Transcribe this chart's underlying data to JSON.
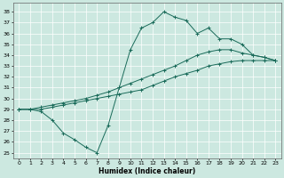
{
  "xlabel": "Humidex (Indice chaleur)",
  "bg_color": "#cce8e0",
  "line_color": "#1a6b5a",
  "grid_color": "#ffffff",
  "xlim": [
    -0.5,
    23.5
  ],
  "ylim": [
    24.5,
    38.8
  ],
  "xticks": [
    0,
    1,
    2,
    3,
    4,
    5,
    6,
    7,
    8,
    9,
    10,
    11,
    12,
    13,
    14,
    15,
    16,
    17,
    18,
    19,
    20,
    21,
    22,
    23
  ],
  "yticks": [
    25,
    26,
    27,
    28,
    29,
    30,
    31,
    32,
    33,
    34,
    35,
    36,
    37,
    38
  ],
  "curve1_x": [
    0,
    1,
    2,
    3,
    4,
    5,
    6,
    7,
    8,
    9,
    10,
    11,
    12,
    13,
    14,
    15,
    16,
    17,
    18,
    19,
    20,
    21,
    22,
    23
  ],
  "curve1_y": [
    29.0,
    29.0,
    29.0,
    29.2,
    29.4,
    29.6,
    29.8,
    30.0,
    30.2,
    30.4,
    30.6,
    30.8,
    31.2,
    31.6,
    32.0,
    32.3,
    32.6,
    33.0,
    33.2,
    33.4,
    33.5,
    33.5,
    33.5,
    33.5
  ],
  "curve2_x": [
    0,
    1,
    2,
    3,
    4,
    5,
    6,
    7,
    8,
    9,
    10,
    11,
    12,
    13,
    14,
    15,
    16,
    17,
    18,
    19,
    20,
    21,
    22,
    23
  ],
  "curve2_y": [
    29.0,
    29.0,
    29.2,
    29.4,
    29.6,
    29.8,
    30.0,
    30.3,
    30.6,
    31.0,
    31.4,
    31.8,
    32.2,
    32.6,
    33.0,
    33.5,
    34.0,
    34.3,
    34.5,
    34.5,
    34.2,
    34.0,
    33.8,
    33.5
  ],
  "curve3_x": [
    0,
    1,
    2,
    3,
    4,
    5,
    6,
    7,
    8,
    9,
    10,
    11,
    12,
    13,
    14,
    15,
    16,
    17,
    18,
    19,
    20,
    21,
    22,
    23
  ],
  "curve3_y": [
    29.0,
    29.0,
    28.8,
    28.0,
    26.8,
    26.2,
    25.5,
    25.0,
    27.5,
    31.0,
    34.5,
    36.5,
    37.0,
    38.0,
    37.5,
    37.2,
    36.0,
    36.5,
    35.5,
    35.5,
    35.0,
    34.0,
    33.8,
    33.5
  ]
}
